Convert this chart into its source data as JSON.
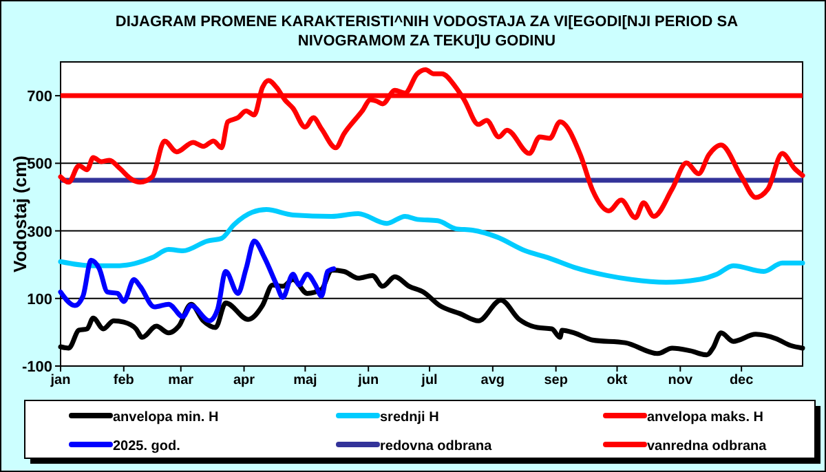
{
  "chart_data": {
    "type": "line",
    "title": "DIJAGRAM PROMENE  KARAKTERISTI^NIH  VODOSTAJA ZA VI[EGODI[NJI PERIOD  SA\nNIVOGRAMOM ZA TEKU]U  GODINU",
    "ylabel": "Vodostaj (cm)",
    "xlim": [
      "--01-01",
      "--12-31"
    ],
    "xticks": [
      {
        "value": "--01-01",
        "label": "jan"
      },
      {
        "value": "--02-01",
        "label": "feb"
      },
      {
        "value": "--03-01",
        "label": "mar"
      },
      {
        "value": "--04-01",
        "label": "apr"
      },
      {
        "value": "--05-01",
        "label": "maj"
      },
      {
        "value": "--06-01",
        "label": "jun"
      },
      {
        "value": "--07-01",
        "label": "jul"
      },
      {
        "value": "--08-01",
        "label": "avg"
      },
      {
        "value": "--09-01",
        "label": "sep"
      },
      {
        "value": "--10-01",
        "label": "okt"
      },
      {
        "value": "--11-01",
        "label": "nov"
      },
      {
        "value": "--12-01",
        "label": "dec"
      }
    ],
    "ylim": [
      -100,
      800
    ],
    "yticks": [
      -100,
      100,
      300,
      500,
      700
    ],
    "grid": "y",
    "legend": "bottom",
    "line_style": "solid",
    "marker": "none",
    "series": [
      {
        "name": "anvelopa min. H",
        "color": "#000000",
        "x": [
          "--01-01",
          "--01-05",
          "--01-10",
          "--01-14",
          "--01-17",
          "--01-22",
          "--01-27",
          "--02-01",
          "--02-07",
          "--02-10",
          "--02-17",
          "--02-23",
          "--02-28",
          "--03-06",
          "--03-12",
          "--03-18",
          "--03-23",
          "--04-03",
          "--04-10",
          "--04-15",
          "--04-20",
          "--04-25",
          "--05-02",
          "--05-09",
          "--05-14",
          "--05-20",
          "--05-27",
          "--06-03",
          "--06-08",
          "--06-14",
          "--06-21",
          "--06-28",
          "--07-06",
          "--07-16",
          "--07-25",
          "--08-05",
          "--08-14",
          "--08-23",
          "--08-30",
          "--09-03",
          "--09-04",
          "--09-10",
          "--09-19",
          "--10-05",
          "--10-21",
          "--10-28",
          "--11-06",
          "--11-14",
          "--11-17",
          "--11-21",
          "--11-27",
          "--12-08",
          "--12-18",
          "--12-25",
          "--12-31"
        ],
        "values": [
          -43,
          -47,
          6,
          10,
          42,
          10,
          34,
          30,
          10,
          -15,
          18,
          -2,
          18,
          83,
          34,
          14,
          87,
          38,
          79,
          140,
          136,
          156,
          115,
          127,
          184,
          180,
          160,
          168,
          136,
          164,
          136,
          119,
          79,
          55,
          34,
          95,
          38,
          14,
          10,
          -15,
          6,
          -2,
          -23,
          -31,
          -63,
          -47,
          -55,
          -67,
          -47,
          -2,
          -27,
          -6,
          -19,
          -39,
          -47
        ]
      },
      {
        "name": "srednji H",
        "color": "#00ccff",
        "x": [
          "--01-01",
          "--01-16",
          "--01-30",
          "--02-15",
          "--02-23",
          "--03-02",
          "--03-14",
          "--03-21",
          "--03-27",
          "--04-05",
          "--04-12",
          "--04-25",
          "--05-14",
          "--05-27",
          "--06-10",
          "--06-19",
          "--06-25",
          "--07-05",
          "--07-14",
          "--07-22",
          "--08-03",
          "--08-17",
          "--08-28",
          "--09-10",
          "--09-26",
          "--10-08",
          "--10-25",
          "--11-10",
          "--11-19",
          "--11-27",
          "--12-12",
          "--12-21",
          "--12-31"
        ],
        "values": [
          209,
          197,
          197,
          221,
          245,
          241,
          270,
          278,
          318,
          355,
          363,
          347,
          343,
          351,
          322,
          343,
          334,
          330,
          306,
          302,
          282,
          241,
          221,
          192,
          168,
          156,
          148,
          156,
          172,
          197,
          180,
          205,
          205
        ]
      },
      {
        "name": "anvelopa maks. H",
        "color": "#ff0000",
        "x": [
          "--01-01",
          "--01-05",
          "--01-10",
          "--01-14",
          "--01-17",
          "--01-21",
          "--01-25",
          "--01-30",
          "--02-05",
          "--02-09",
          "--02-15",
          "--02-21",
          "--02-27",
          "--03-07",
          "--03-12",
          "--03-17",
          "--03-21",
          "--03-24",
          "--03-29",
          "--04-02",
          "--04-06",
          "--04-10",
          "--04-13",
          "--04-17",
          "--04-21",
          "--04-25",
          "--05-01",
          "--05-05",
          "--05-09",
          "--05-16",
          "--05-20",
          "--05-29",
          "--06-02",
          "--06-05",
          "--06-08",
          "--06-14",
          "--06-19",
          "--06-25",
          "--06-29",
          "--07-03",
          "--07-07",
          "--07-14",
          "--07-18",
          "--07-25",
          "--07-29",
          "--08-04",
          "--08-08",
          "--08-19",
          "--08-24",
          "--08-29",
          "--09-03",
          "--09-13",
          "--09-19",
          "--09-27",
          "--10-03",
          "--10-10",
          "--10-14",
          "--10-19",
          "--10-28",
          "--11-04",
          "--11-10",
          "--11-15",
          "--11-21",
          "--12-01",
          "--12-08",
          "--12-14",
          "--12-21",
          "--12-27",
          "--12-31"
        ],
        "values": [
          460,
          444,
          493,
          481,
          517,
          505,
          509,
          485,
          452,
          444,
          460,
          566,
          534,
          562,
          550,
          566,
          546,
          623,
          635,
          655,
          643,
          724,
          745,
          724,
          688,
          663,
          607,
          635,
          602,
          546,
          587,
          655,
          688,
          684,
          676,
          716,
          708,
          765,
          777,
          765,
          765,
          724,
          688,
          615,
          627,
          578,
          598,
          529,
          578,
          574,
          623,
          525,
          420,
          359,
          391,
          339,
          383,
          343,
          424,
          501,
          469,
          525,
          554,
          460,
          399,
          424,
          529,
          485,
          464
        ]
      },
      {
        "name": "2025. god.",
        "color": "#0000ff",
        "x": [
          "--01-01",
          "--01-08",
          "--01-12",
          "--01-16",
          "--01-20",
          "--01-24",
          "--01-29",
          "--02-01",
          "--02-06",
          "--02-09",
          "--02-16",
          "--02-23",
          "--03-02",
          "--03-06",
          "--03-15",
          "--03-19",
          "--03-23",
          "--03-29",
          "--04-02",
          "--04-06",
          "--04-11",
          "--04-17",
          "--04-20",
          "--04-25",
          "--04-28",
          "--05-02",
          "--05-06",
          "--05-09",
          "--05-12",
          "--05-15"
        ],
        "values": [
          119,
          79,
          107,
          213,
          188,
          119,
          115,
          91,
          156,
          136,
          75,
          83,
          46,
          79,
          34,
          67,
          180,
          115,
          188,
          270,
          221,
          140,
          103,
          172,
          140,
          172,
          140,
          107,
          180,
          188
        ]
      }
    ],
    "ref_lines": [
      {
        "axis": "y",
        "value": 450,
        "label": "redovna odbrana",
        "color": "#333399"
      },
      {
        "axis": "y",
        "value": 700,
        "label": "vanredna odbrana",
        "color": "#ff0000"
      }
    ]
  }
}
